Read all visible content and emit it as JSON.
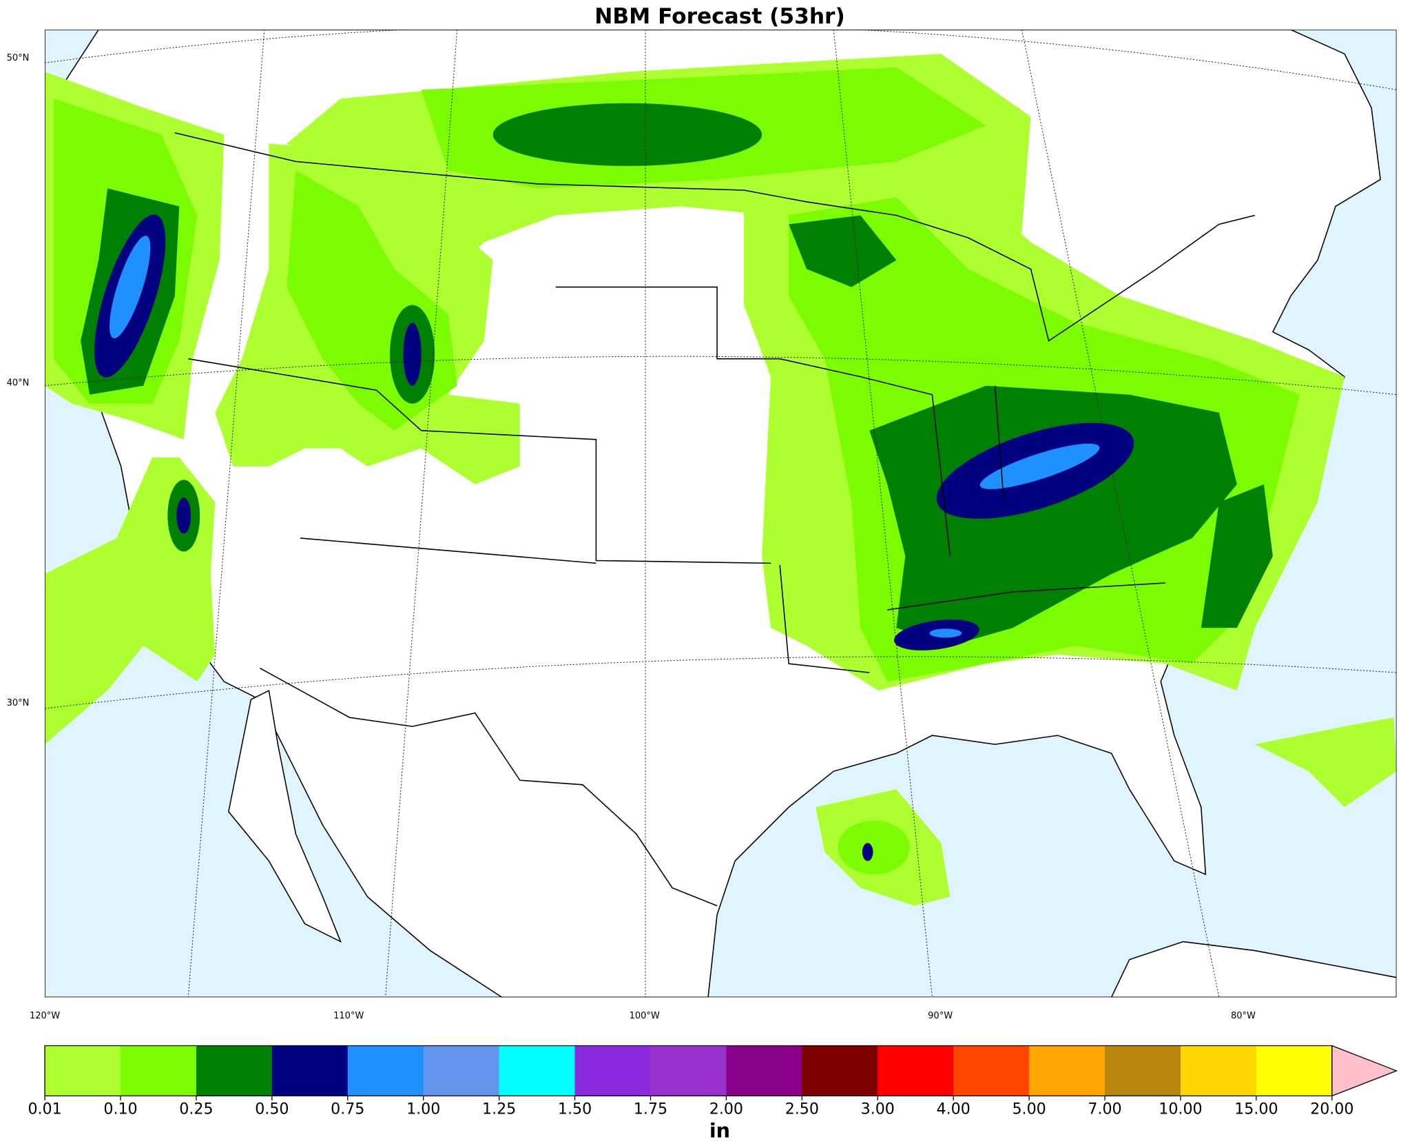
{
  "title": "NBM Forecast (53hr)",
  "map": {
    "lat_labels": [
      "50°N",
      "40°N",
      "30°N"
    ],
    "lon_labels": [
      "120°W",
      "110°W",
      "100°W",
      "90°W",
      "80°W"
    ],
    "ocean_color": "#dff4fc",
    "land_color": "#ffffff"
  },
  "colorbar": {
    "label": "in",
    "levels": [
      0.01,
      {
        "value": 0.1,
        "label": "0.10"
      },
      0.25,
      {
        "value": 0.5,
        "label": "0.50"
      },
      0.75,
      {
        "value": 1,
        "label": "1.00"
      },
      1.25,
      {
        "value": 1.5,
        "label": "1.50"
      },
      1.75,
      {
        "value": 2,
        "label": "2.00"
      },
      {
        "value": 2.5,
        "label": "2.50"
      },
      {
        "value": 3,
        "label": "3.00"
      },
      {
        "value": 4,
        "label": "4.00"
      },
      {
        "value": 5,
        "label": "5.00"
      },
      {
        "value": 7,
        "label": "7.00"
      },
      {
        "value": 10,
        "label": "10.00"
      },
      {
        "value": 15,
        "label": "15.00"
      },
      {
        "value": 20,
        "label": "20.00"
      }
    ],
    "colors": [
      "#adff2f",
      "#7cfc00",
      "#008000",
      "#000080",
      "#1e90ff",
      "#6495ed",
      "#00ffff",
      "#8a2be2",
      "#9932cc",
      "#8b008b",
      "#800000",
      "#ff0000",
      "#ff4500",
      "#ffa500",
      "#b8860b",
      "#ffd700",
      "#ffff00"
    ],
    "extend_color": "#ffc0cb"
  }
}
